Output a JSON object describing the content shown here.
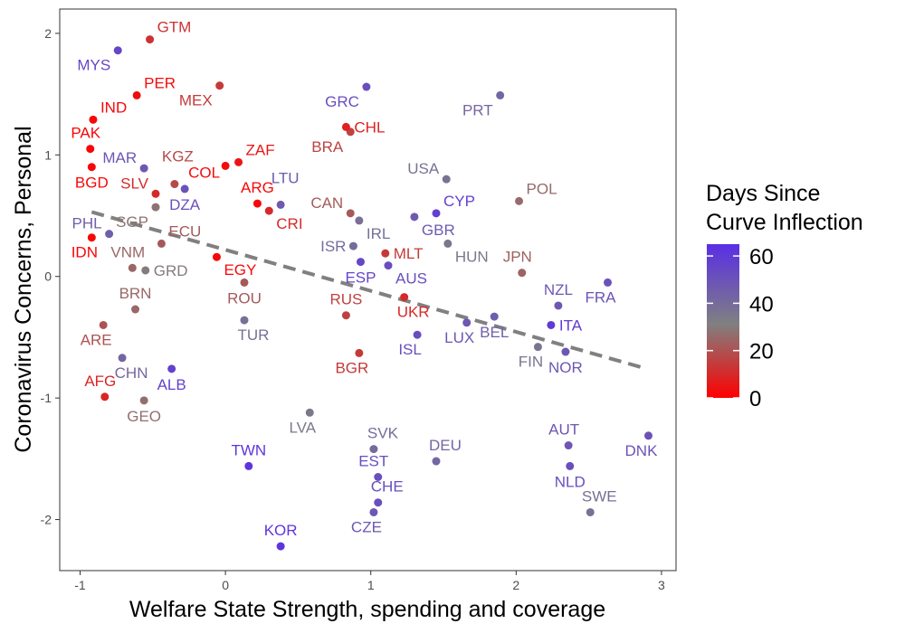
{
  "chart_data": {
    "type": "scatter",
    "xlabel": "Welfare State Strength, spending and coverage",
    "ylabel": "Coronavirus Concerns, Personal",
    "xlim": [
      -1.14,
      3.1
    ],
    "ylim": [
      -2.42,
      2.2
    ],
    "x_ticks": [
      -1,
      0,
      1,
      2,
      3
    ],
    "y_ticks": [
      -2,
      -1,
      0,
      1,
      2
    ],
    "grid": false,
    "legend": {
      "title_lines": [
        "Days Since",
        "Curve Inflection"
      ],
      "position": "right",
      "ticks": [
        0,
        20,
        40,
        60
      ],
      "min": 0,
      "max": 65,
      "colors": {
        "low": "#ff0000",
        "mid": "#808080",
        "high": "#5a2ee6"
      }
    },
    "trend_line": {
      "x": [
        -0.92,
        2.9
      ],
      "y": [
        0.53,
        -0.76
      ],
      "color": "#808080",
      "style": "dashed"
    },
    "points": [
      {
        "label": "GTM",
        "x": -0.52,
        "y": 1.95,
        "days": 12,
        "anchor": "right-up"
      },
      {
        "label": "MYS",
        "x": -0.74,
        "y": 1.86,
        "days": 55,
        "anchor": "left-down"
      },
      {
        "label": "PER",
        "x": -0.61,
        "y": 1.49,
        "days": 3,
        "anchor": "right-up"
      },
      {
        "label": "MEX",
        "x": -0.04,
        "y": 1.57,
        "days": 14,
        "anchor": "left-down"
      },
      {
        "label": "IND",
        "x": -0.91,
        "y": 1.29,
        "days": 2,
        "anchor": "right-up"
      },
      {
        "label": "GRC",
        "x": 0.97,
        "y": 1.56,
        "days": 52,
        "anchor": "left-down"
      },
      {
        "label": "PRT",
        "x": 1.89,
        "y": 1.49,
        "days": 42,
        "anchor": "left-down"
      },
      {
        "label": "PAK",
        "x": -0.93,
        "y": 1.05,
        "days": 1,
        "anchor": "up-left"
      },
      {
        "label": "BRA",
        "x": 0.86,
        "y": 1.19,
        "days": 16,
        "anchor": "left-down"
      },
      {
        "label": "CHL",
        "x": 0.83,
        "y": 1.23,
        "days": 8,
        "anchor": "right"
      },
      {
        "label": "MAR",
        "x": -0.56,
        "y": 0.89,
        "days": 48,
        "anchor": "left-up"
      },
      {
        "label": "KGZ",
        "x": -0.35,
        "y": 0.76,
        "days": 18,
        "anchor": "right-up-far"
      },
      {
        "label": "ZAF",
        "x": 0.09,
        "y": 0.94,
        "days": 5,
        "anchor": "right-up"
      },
      {
        "label": "COL",
        "x": 0.0,
        "y": 0.91,
        "days": 3,
        "anchor": "left-down-near"
      },
      {
        "label": "USA",
        "x": 1.52,
        "y": 0.8,
        "days": 37,
        "anchor": "left-up"
      },
      {
        "label": "BGD",
        "x": -0.92,
        "y": 0.9,
        "days": 2,
        "anchor": "down"
      },
      {
        "label": "SLV",
        "x": -0.48,
        "y": 0.68,
        "days": 10,
        "anchor": "left-up"
      },
      {
        "label": "DZA",
        "x": -0.28,
        "y": 0.72,
        "days": 50,
        "anchor": "down"
      },
      {
        "label": "LTU",
        "x": 0.38,
        "y": 0.59,
        "days": 47,
        "anchor": "up-far"
      },
      {
        "label": "POL",
        "x": 2.02,
        "y": 0.62,
        "days": 26,
        "anchor": "right-up"
      },
      {
        "label": "ARG",
        "x": 0.22,
        "y": 0.6,
        "days": 2,
        "anchor": "up"
      },
      {
        "label": "CRI",
        "x": 0.3,
        "y": 0.54,
        "days": 10,
        "anchor": "right-down"
      },
      {
        "label": "CAN",
        "x": 0.86,
        "y": 0.52,
        "days": 22,
        "anchor": "left-up"
      },
      {
        "label": "CYP",
        "x": 1.45,
        "y": 0.52,
        "days": 58,
        "anchor": "right-up"
      },
      {
        "label": "PHL",
        "x": -0.8,
        "y": 0.35,
        "days": 45,
        "anchor": "left-up"
      },
      {
        "label": "SGP",
        "x": -0.48,
        "y": 0.57,
        "days": 28,
        "anchor": "left-down"
      },
      {
        "label": "ECU",
        "x": -0.44,
        "y": 0.27,
        "days": 22,
        "anchor": "right-up"
      },
      {
        "label": "GBR",
        "x": 1.3,
        "y": 0.49,
        "days": 47,
        "anchor": "right-down"
      },
      {
        "label": "IRL",
        "x": 0.92,
        "y": 0.46,
        "days": 38,
        "anchor": "right-down"
      },
      {
        "label": "ISR",
        "x": 0.88,
        "y": 0.25,
        "days": 40,
        "anchor": "left"
      },
      {
        "label": "HUN",
        "x": 1.53,
        "y": 0.27,
        "days": 35,
        "anchor": "right-down"
      },
      {
        "label": "IDN",
        "x": -0.92,
        "y": 0.32,
        "days": 1,
        "anchor": "down-left"
      },
      {
        "label": "VNM",
        "x": -0.64,
        "y": 0.07,
        "days": 25,
        "anchor": "up-left"
      },
      {
        "label": "MLT",
        "x": 1.1,
        "y": 0.19,
        "days": 14,
        "anchor": "right"
      },
      {
        "label": "JPN",
        "x": 2.04,
        "y": 0.03,
        "days": 24,
        "anchor": "up-left"
      },
      {
        "label": "EGY",
        "x": -0.06,
        "y": 0.16,
        "days": 2,
        "anchor": "right-down"
      },
      {
        "label": "GRD",
        "x": -0.55,
        "y": 0.05,
        "days": 30,
        "anchor": "right"
      },
      {
        "label": "ESP",
        "x": 0.93,
        "y": 0.12,
        "days": 55,
        "anchor": "down"
      },
      {
        "label": "AUS",
        "x": 1.12,
        "y": 0.09,
        "days": 52,
        "anchor": "right-down"
      },
      {
        "label": "ROU",
        "x": 0.13,
        "y": -0.05,
        "days": 22,
        "anchor": "down"
      },
      {
        "label": "FRA",
        "x": 2.63,
        "y": -0.05,
        "days": 50,
        "anchor": "down-left"
      },
      {
        "label": "NZL",
        "x": 2.29,
        "y": -0.24,
        "days": 48,
        "anchor": "up"
      },
      {
        "label": "BRN",
        "x": -0.62,
        "y": -0.27,
        "days": 25,
        "anchor": "up"
      },
      {
        "label": "RUS",
        "x": 0.83,
        "y": -0.32,
        "days": 16,
        "anchor": "up"
      },
      {
        "label": "UKR",
        "x": 1.23,
        "y": -0.17,
        "days": 10,
        "anchor": "down-right"
      },
      {
        "label": "BEL",
        "x": 1.85,
        "y": -0.33,
        "days": 45,
        "anchor": "down"
      },
      {
        "label": "ITA",
        "x": 2.24,
        "y": -0.4,
        "days": 60,
        "anchor": "right"
      },
      {
        "label": "TUR",
        "x": 0.13,
        "y": -0.36,
        "days": 38,
        "anchor": "down-right"
      },
      {
        "label": "LUX",
        "x": 1.66,
        "y": -0.38,
        "days": 48,
        "anchor": "down-left"
      },
      {
        "label": "ARE",
        "x": -0.84,
        "y": -0.4,
        "days": 20,
        "anchor": "down-left"
      },
      {
        "label": "ISL",
        "x": 1.32,
        "y": -0.48,
        "days": 52,
        "anchor": "down-left"
      },
      {
        "label": "FIN",
        "x": 2.15,
        "y": -0.58,
        "days": 36,
        "anchor": "down-left"
      },
      {
        "label": "NOR",
        "x": 2.34,
        "y": -0.62,
        "days": 48,
        "anchor": "down"
      },
      {
        "label": "BGR",
        "x": 0.92,
        "y": -0.63,
        "days": 14,
        "anchor": "down-left"
      },
      {
        "label": "CHN",
        "x": -0.71,
        "y": -0.67,
        "days": 42,
        "anchor": "down-right"
      },
      {
        "label": "ALB",
        "x": -0.37,
        "y": -0.76,
        "days": 57,
        "anchor": "down"
      },
      {
        "label": "AFG",
        "x": -0.83,
        "y": -0.99,
        "days": 9,
        "anchor": "up-left"
      },
      {
        "label": "GEO",
        "x": -0.56,
        "y": -1.02,
        "days": 27,
        "anchor": "down"
      },
      {
        "label": "LVA",
        "x": 0.58,
        "y": -1.12,
        "days": 35,
        "anchor": "down-left"
      },
      {
        "label": "SVK",
        "x": 1.02,
        "y": -1.42,
        "days": 40,
        "anchor": "up-right"
      },
      {
        "label": "DEU",
        "x": 1.45,
        "y": -1.52,
        "days": 42,
        "anchor": "up-right"
      },
      {
        "label": "AUT",
        "x": 2.36,
        "y": -1.39,
        "days": 48,
        "anchor": "up-left"
      },
      {
        "label": "DNK",
        "x": 2.91,
        "y": -1.31,
        "days": 50,
        "anchor": "down-left"
      },
      {
        "label": "TWN",
        "x": 0.16,
        "y": -1.56,
        "days": 62,
        "anchor": "up"
      },
      {
        "label": "EST",
        "x": 1.05,
        "y": -1.65,
        "days": 52,
        "anchor": "up-left"
      },
      {
        "label": "NLD",
        "x": 2.37,
        "y": -1.56,
        "days": 52,
        "anchor": "down"
      },
      {
        "label": "CHE",
        "x": 1.05,
        "y": -1.86,
        "days": 52,
        "anchor": "up-right"
      },
      {
        "label": "SWE",
        "x": 2.51,
        "y": -1.94,
        "days": 38,
        "anchor": "up-right"
      },
      {
        "label": "CZE",
        "x": 1.02,
        "y": -1.94,
        "days": 48,
        "anchor": "down-left"
      },
      {
        "label": "KOR",
        "x": 0.38,
        "y": -2.22,
        "days": 62,
        "anchor": "up"
      }
    ]
  }
}
